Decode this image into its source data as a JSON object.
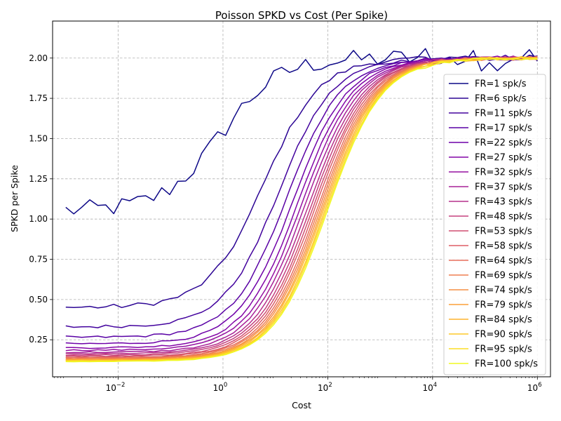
{
  "chart_data": {
    "type": "line",
    "title": "Poisson SPKD vs Cost (Per Spike)",
    "xlabel": "Cost",
    "ylabel": "SPKD per Spike",
    "xscale": "log",
    "xlim": [
      0.00056,
      1780000
    ],
    "ylim": [
      0.02,
      2.23
    ],
    "x_ticks": [
      {
        "value": 0.01,
        "base": "10",
        "exp": "−2"
      },
      {
        "value": 1,
        "base": "10",
        "exp": "0"
      },
      {
        "value": 100,
        "base": "10",
        "exp": "2"
      },
      {
        "value": 10000,
        "base": "10",
        "exp": "4"
      },
      {
        "value": 1000000,
        "base": "10",
        "exp": "6"
      }
    ],
    "y_ticks": [
      "0.25",
      "0.50",
      "0.75",
      "1.00",
      "1.25",
      "1.50",
      "1.75",
      "2.00"
    ],
    "grid": true,
    "grid_style": "dashed",
    "legend_position": "right",
    "colormap": "plasma",
    "x_range": [
      0.001,
      1000000
    ],
    "n_points": 60,
    "series": [
      {
        "name": "FR=1 spk/s",
        "color": "#0d0887",
        "low": 1.05,
        "x50": 0.9,
        "width": 0.55,
        "jitter": 0.06
      },
      {
        "name": "FR=6 spk/s",
        "color": "#2c0594",
        "low": 0.45,
        "x50": 6.1,
        "width": 0.53,
        "jitter": 0.015
      },
      {
        "name": "FR=11 spk/s",
        "color": "#43039e",
        "low": 0.33,
        "x50": 11.5,
        "width": 0.52,
        "jitter": 0.01
      },
      {
        "name": "FR=17 spk/s",
        "color": "#5901a5",
        "low": 0.265,
        "x50": 16.5,
        "width": 0.52,
        "jitter": 0.008
      },
      {
        "name": "FR=22 spk/s",
        "color": "#6e00a8",
        "low": 0.225,
        "x50": 21.7,
        "width": 0.52,
        "jitter": 0.006
      },
      {
        "name": "FR=27 spk/s",
        "color": "#8305a7",
        "low": 0.2,
        "x50": 26.8,
        "width": 0.52,
        "jitter": 0.005
      },
      {
        "name": "FR=32 spk/s",
        "color": "#9511a1",
        "low": 0.185,
        "x50": 31.8,
        "width": 0.52,
        "jitter": 0.004
      },
      {
        "name": "FR=37 spk/s",
        "color": "#a72197",
        "low": 0.172,
        "x50": 36.9,
        "width": 0.52,
        "jitter": 0.004
      },
      {
        "name": "FR=43 spk/s",
        "color": "#b6308b",
        "low": 0.163,
        "x50": 42.6,
        "width": 0.52,
        "jitter": 0.003
      },
      {
        "name": "FR=48 spk/s",
        "color": "#c5407e",
        "low": 0.155,
        "x50": 47.6,
        "width": 0.52,
        "jitter": 0.003
      },
      {
        "name": "FR=53 spk/s",
        "color": "#d14e72",
        "low": 0.148,
        "x50": 52.6,
        "width": 0.52,
        "jitter": 0.003
      },
      {
        "name": "FR=58 spk/s",
        "color": "#dd5e66",
        "low": 0.142,
        "x50": 57.7,
        "width": 0.52,
        "jitter": 0.003
      },
      {
        "name": "FR=64 spk/s",
        "color": "#e76e5b",
        "low": 0.137,
        "x50": 63.6,
        "width": 0.52,
        "jitter": 0.002
      },
      {
        "name": "FR=69 spk/s",
        "color": "#ef7e50",
        "low": 0.133,
        "x50": 68.7,
        "width": 0.52,
        "jitter": 0.002
      },
      {
        "name": "FR=74 spk/s",
        "color": "#f68f44",
        "low": 0.129,
        "x50": 73.7,
        "width": 0.52,
        "jitter": 0.002
      },
      {
        "name": "FR=79 spk/s",
        "color": "#fba139",
        "low": 0.126,
        "x50": 78.8,
        "width": 0.52,
        "jitter": 0.002
      },
      {
        "name": "FR=84 spk/s",
        "color": "#fdb42f",
        "low": 0.123,
        "x50": 83.8,
        "width": 0.52,
        "jitter": 0.002
      },
      {
        "name": "FR=90 spk/s",
        "color": "#fec829",
        "low": 0.12,
        "x50": 89.7,
        "width": 0.52,
        "jitter": 0.002
      },
      {
        "name": "FR=95 spk/s",
        "color": "#fbdd25",
        "low": 0.118,
        "x50": 94.8,
        "width": 0.52,
        "jitter": 0.002
      },
      {
        "name": "FR=100 spk/s",
        "color": "#f0f921",
        "low": 0.115,
        "x50": 99.8,
        "width": 0.52,
        "jitter": 0.002
      }
    ]
  }
}
